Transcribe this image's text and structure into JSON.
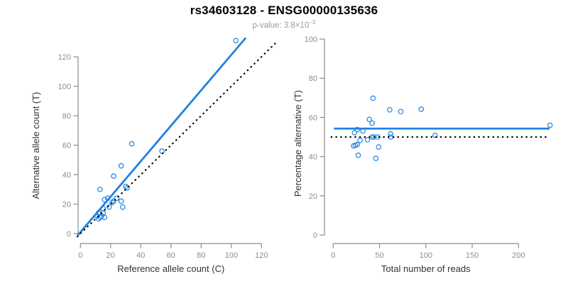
{
  "header": {
    "title": "rs34603128 - ENSG00000135636",
    "pvalue": {
      "text": "p-value: 3.8",
      "base": "×10",
      "exponent": "−3"
    }
  },
  "colors": {
    "accent_blue": "#1f82e0",
    "line_black": "#000000",
    "axis_gray": "#8a8a8a",
    "tick_label_gray": "#8c8c8c",
    "axis_title_color": "#333333",
    "subtitle_gray": "#9b9b9b",
    "background": "#ffffff"
  },
  "chart_data": [
    {
      "type": "scatter",
      "panel": "left",
      "xlabel": "Reference allele count (C)",
      "ylabel": "Alternative allele count (T)",
      "xticks": [
        0,
        20,
        40,
        60,
        80,
        100,
        120
      ],
      "yticks": [
        0,
        20,
        40,
        60,
        80,
        100,
        120
      ],
      "xlim": [
        -5,
        133
      ],
      "ylim": [
        -6,
        134
      ],
      "grid": false,
      "legend": null,
      "marker": "open-circle",
      "points": [
        [
          11,
          12
        ],
        [
          12,
          10
        ],
        [
          12,
          14
        ],
        [
          13,
          11
        ],
        [
          14,
          12
        ],
        [
          16,
          11
        ],
        [
          13,
          30
        ],
        [
          15,
          14
        ],
        [
          15,
          17
        ],
        [
          16,
          23
        ],
        [
          18,
          24
        ],
        [
          19,
          18
        ],
        [
          21,
          21
        ],
        [
          22,
          22
        ],
        [
          24,
          24
        ],
        [
          27,
          22
        ],
        [
          28,
          18
        ],
        [
          22,
          39
        ],
        [
          30,
          32
        ],
        [
          31,
          31
        ],
        [
          27,
          46
        ],
        [
          34,
          61
        ],
        [
          54,
          56
        ],
        [
          103,
          131
        ]
      ],
      "lines": [
        {
          "name": "fit-line",
          "role": "regression",
          "color": "blue",
          "style": "solid",
          "width": 2.8,
          "x1": -1.9,
          "y1": -1.3,
          "x2": 109.6,
          "y2": 132.9
        },
        {
          "name": "identity-line",
          "role": "y-equals-x",
          "color": "black",
          "style": "dotted",
          "width": 2.2,
          "x1": -2,
          "y1": -2,
          "x2": 130.5,
          "y2": 130.5
        }
      ]
    },
    {
      "type": "scatter",
      "panel": "right",
      "xlabel": "Total number of reads",
      "ylabel": "Percentage alternative (T)",
      "xticks": [
        0,
        50,
        100,
        150,
        200
      ],
      "yticks": [
        0,
        20,
        40,
        60,
        80,
        100
      ],
      "xlim": [
        -8,
        237
      ],
      "ylim": [
        -8,
        108
      ],
      "grid": false,
      "legend": null,
      "marker": "open-circle",
      "points": [
        [
          23,
          52.2
        ],
        [
          22,
          45.5
        ],
        [
          26,
          53.8
        ],
        [
          24,
          45.8
        ],
        [
          26,
          46.2
        ],
        [
          27,
          40.7
        ],
        [
          43,
          69.8
        ],
        [
          29,
          48.3
        ],
        [
          32,
          53.1
        ],
        [
          39,
          59.0
        ],
        [
          42,
          57.1
        ],
        [
          37,
          48.6
        ],
        [
          42,
          50.0
        ],
        [
          44,
          50.0
        ],
        [
          48,
          50.0
        ],
        [
          49,
          44.9
        ],
        [
          46,
          39.1
        ],
        [
          61,
          63.9
        ],
        [
          62,
          51.6
        ],
        [
          62,
          50.0
        ],
        [
          73,
          63.0
        ],
        [
          95,
          64.2
        ],
        [
          110,
          50.9
        ],
        [
          234,
          56.0
        ]
      ],
      "lines": [
        {
          "name": "mean-line",
          "role": "fitted-percentage",
          "color": "blue",
          "style": "solid",
          "width": 2.8,
          "x1": 0.8,
          "y1": 54.3,
          "x2": 233.5,
          "y2": 54.3
        },
        {
          "name": "expected-line",
          "role": "null-50-percent",
          "color": "black",
          "style": "dotted",
          "width": 2.2,
          "x1": -2,
          "y1": 50,
          "x2": 230,
          "y2": 50
        }
      ]
    }
  ]
}
